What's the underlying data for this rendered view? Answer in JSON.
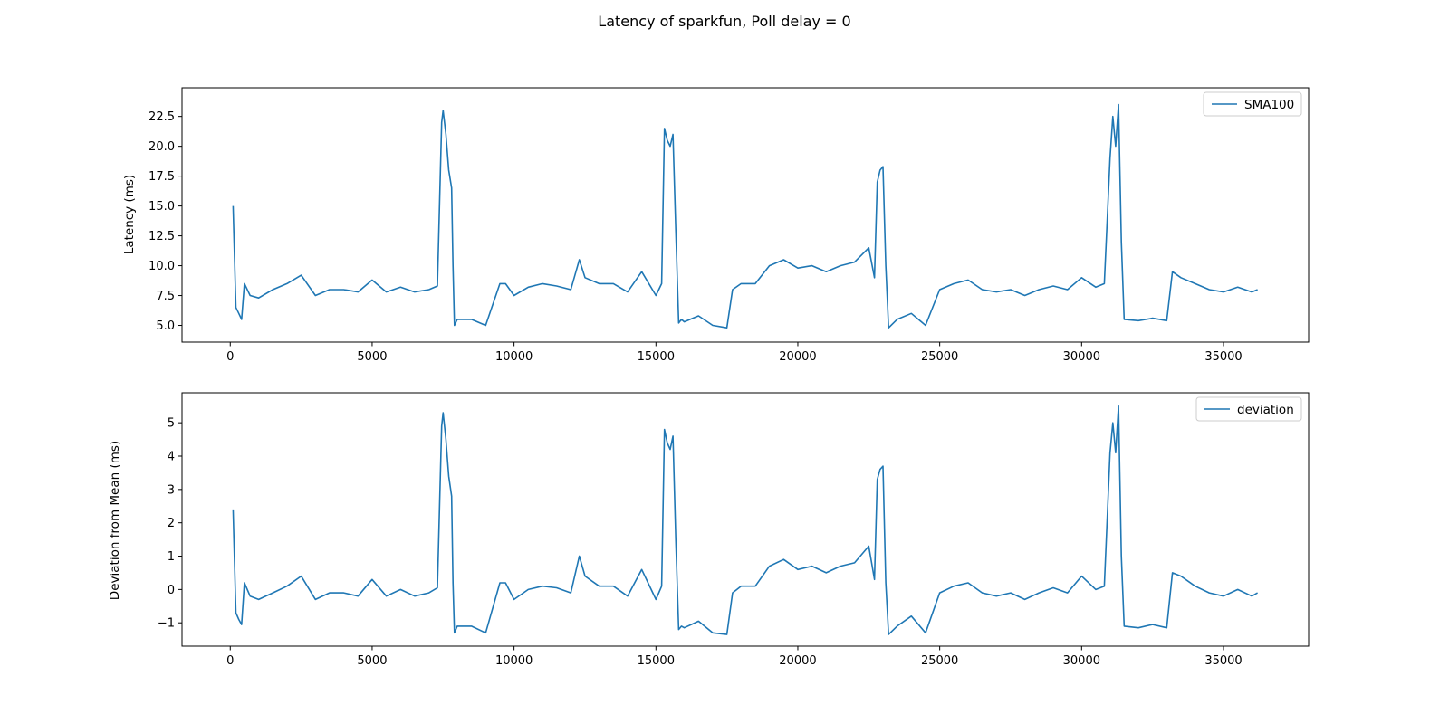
{
  "figure_title": "Latency of sparkfun, Poll delay = 0",
  "colors": {
    "series": "#1f77b4",
    "frame": "#000000",
    "legend_border": "#cccccc"
  },
  "chart_data": [
    {
      "type": "line",
      "ylabel": "Latency (ms)",
      "xlabel": "",
      "xlim": [
        -1700,
        38000
      ],
      "ylim": [
        3.6,
        24.9
      ],
      "xticks": [
        0,
        5000,
        10000,
        15000,
        20000,
        25000,
        30000,
        35000
      ],
      "yticks": [
        5.0,
        7.5,
        10.0,
        12.5,
        15.0,
        17.5,
        20.0,
        22.5
      ],
      "ytick_labels": [
        "5.0",
        "7.5",
        "10.0",
        "12.5",
        "15.0",
        "17.5",
        "20.0",
        "22.5"
      ],
      "grid": false,
      "legend_position": "top-right",
      "series": [
        {
          "name": "SMA100",
          "x": [
            100,
            200,
            300,
            400,
            500,
            700,
            1000,
            1500,
            2000,
            2500,
            3000,
            3500,
            4000,
            4500,
            5000,
            5500,
            6000,
            6500,
            7000,
            7300,
            7450,
            7500,
            7600,
            7700,
            7800,
            7850,
            7900,
            8000,
            8500,
            9000,
            9500,
            9700,
            10000,
            10500,
            11000,
            11500,
            12000,
            12300,
            12500,
            13000,
            13500,
            14000,
            14500,
            15000,
            15200,
            15300,
            15400,
            15500,
            15600,
            15700,
            15800,
            15900,
            16000,
            16500,
            17000,
            17500,
            17700,
            18000,
            18500,
            19000,
            19500,
            20000,
            20500,
            21000,
            21500,
            22000,
            22500,
            22700,
            22800,
            22900,
            23000,
            23100,
            23200,
            23500,
            24000,
            24500,
            25000,
            25500,
            26000,
            26500,
            27000,
            27500,
            28000,
            28500,
            29000,
            29500,
            30000,
            30500,
            30800,
            31000,
            31100,
            31200,
            31300,
            31400,
            31500,
            32000,
            32500,
            33000,
            33200,
            33500,
            34000,
            34500,
            35000,
            35500,
            36000,
            36200
          ],
          "y": [
            15.0,
            6.5,
            6.0,
            5.5,
            8.5,
            7.5,
            7.3,
            8.0,
            8.5,
            9.2,
            7.5,
            8.0,
            8.0,
            7.8,
            8.8,
            7.8,
            8.2,
            7.8,
            8.0,
            8.3,
            22.0,
            23.0,
            21.0,
            18.0,
            16.5,
            10.0,
            5.0,
            5.5,
            5.5,
            5.0,
            8.5,
            8.5,
            7.5,
            8.2,
            8.5,
            8.3,
            8.0,
            10.5,
            9.0,
            8.5,
            8.5,
            7.8,
            9.5,
            7.5,
            8.5,
            21.5,
            20.5,
            20.0,
            21.0,
            13.0,
            5.2,
            5.5,
            5.3,
            5.8,
            5.0,
            4.8,
            8.0,
            8.5,
            8.5,
            10.0,
            10.5,
            9.8,
            10.0,
            9.5,
            10.0,
            10.3,
            11.5,
            9.0,
            17.0,
            18.0,
            18.3,
            10.0,
            4.8,
            5.5,
            6.0,
            5.0,
            8.0,
            8.5,
            8.8,
            8.0,
            7.8,
            8.0,
            7.5,
            8.0,
            8.3,
            8.0,
            9.0,
            8.2,
            8.5,
            19.0,
            22.5,
            20.0,
            23.5,
            12.0,
            5.5,
            5.4,
            5.6,
            5.4,
            9.5,
            9.0,
            8.5,
            8.0,
            7.8,
            8.2,
            7.8,
            8.0
          ]
        }
      ]
    },
    {
      "type": "line",
      "ylabel": "Deviation from Mean (ms)",
      "xlabel": "",
      "xlim": [
        -1700,
        38000
      ],
      "ylim": [
        -1.7,
        5.9
      ],
      "xticks": [
        0,
        5000,
        10000,
        15000,
        20000,
        25000,
        30000,
        35000
      ],
      "yticks": [
        -1,
        0,
        1,
        2,
        3,
        4,
        5
      ],
      "ytick_labels": [
        "−1",
        "0",
        "1",
        "2",
        "3",
        "4",
        "5"
      ],
      "grid": false,
      "legend_position": "top-right",
      "series": [
        {
          "name": "deviation",
          "x": [
            100,
            200,
            300,
            400,
            500,
            700,
            1000,
            1500,
            2000,
            2500,
            3000,
            3500,
            4000,
            4500,
            5000,
            5500,
            6000,
            6500,
            7000,
            7300,
            7450,
            7500,
            7600,
            7700,
            7800,
            7850,
            7900,
            8000,
            8500,
            9000,
            9500,
            9700,
            10000,
            10500,
            11000,
            11500,
            12000,
            12300,
            12500,
            13000,
            13500,
            14000,
            14500,
            15000,
            15200,
            15300,
            15400,
            15500,
            15600,
            15700,
            15800,
            15900,
            16000,
            16500,
            17000,
            17500,
            17700,
            18000,
            18500,
            19000,
            19500,
            20000,
            20500,
            21000,
            21500,
            22000,
            22500,
            22700,
            22800,
            22900,
            23000,
            23100,
            23200,
            23500,
            24000,
            24500,
            25000,
            25500,
            26000,
            26500,
            27000,
            27500,
            28000,
            28500,
            29000,
            29500,
            30000,
            30500,
            30800,
            31000,
            31100,
            31200,
            31300,
            31400,
            31500,
            32000,
            32500,
            33000,
            33200,
            33500,
            34000,
            34500,
            35000,
            35500,
            36000,
            36200
          ],
          "y": [
            2.4,
            -0.7,
            -0.9,
            -1.05,
            0.2,
            -0.2,
            -0.3,
            -0.1,
            0.1,
            0.4,
            -0.3,
            -0.1,
            -0.1,
            -0.2,
            0.3,
            -0.2,
            0.0,
            -0.2,
            -0.1,
            0.05,
            4.9,
            5.3,
            4.5,
            3.4,
            2.8,
            0.2,
            -1.3,
            -1.1,
            -1.1,
            -1.3,
            0.2,
            0.2,
            -0.3,
            0.0,
            0.1,
            0.05,
            -0.1,
            1.0,
            0.4,
            0.1,
            0.1,
            -0.2,
            0.6,
            -0.3,
            0.1,
            4.8,
            4.4,
            4.2,
            4.6,
            1.5,
            -1.2,
            -1.1,
            -1.15,
            -0.95,
            -1.3,
            -1.35,
            -0.1,
            0.1,
            0.1,
            0.7,
            0.9,
            0.6,
            0.7,
            0.5,
            0.7,
            0.8,
            1.3,
            0.3,
            3.3,
            3.6,
            3.7,
            0.2,
            -1.35,
            -1.1,
            -0.8,
            -1.3,
            -0.1,
            0.1,
            0.2,
            -0.1,
            -0.2,
            -0.1,
            -0.3,
            -0.1,
            0.05,
            -0.1,
            0.4,
            0.0,
            0.1,
            4.1,
            5.0,
            4.1,
            5.5,
            1.0,
            -1.1,
            -1.15,
            -1.05,
            -1.15,
            0.5,
            0.4,
            0.1,
            -0.1,
            -0.2,
            0.0,
            -0.2,
            -0.1
          ]
        }
      ]
    }
  ]
}
